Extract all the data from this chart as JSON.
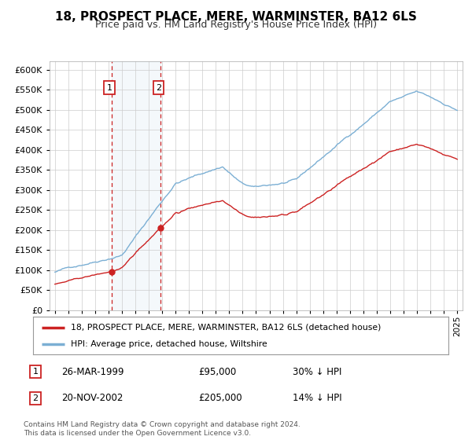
{
  "title": "18, PROSPECT PLACE, MERE, WARMINSTER, BA12 6LS",
  "subtitle": "Price paid vs. HM Land Registry's House Price Index (HPI)",
  "sale1_price": 95000,
  "sale1_hpi_pct": "30% ↓ HPI",
  "sale1_display": "26-MAR-1999",
  "sale1_year": 1999.22,
  "sale2_price": 205000,
  "sale2_hpi_pct": "14% ↓ HPI",
  "sale2_display": "20-NOV-2002",
  "sale2_year": 2002.88,
  "hpi_color": "#7bafd4",
  "price_color": "#cc2222",
  "legend_label1": "18, PROSPECT PLACE, MERE, WARMINSTER, BA12 6LS (detached house)",
  "legend_label2": "HPI: Average price, detached house, Wiltshire",
  "footer": "Contains HM Land Registry data © Crown copyright and database right 2024.\nThis data is licensed under the Open Government Licence v3.0.",
  "background_color": "#ffffff",
  "grid_color": "#cccccc",
  "box_color": "#cc2222"
}
